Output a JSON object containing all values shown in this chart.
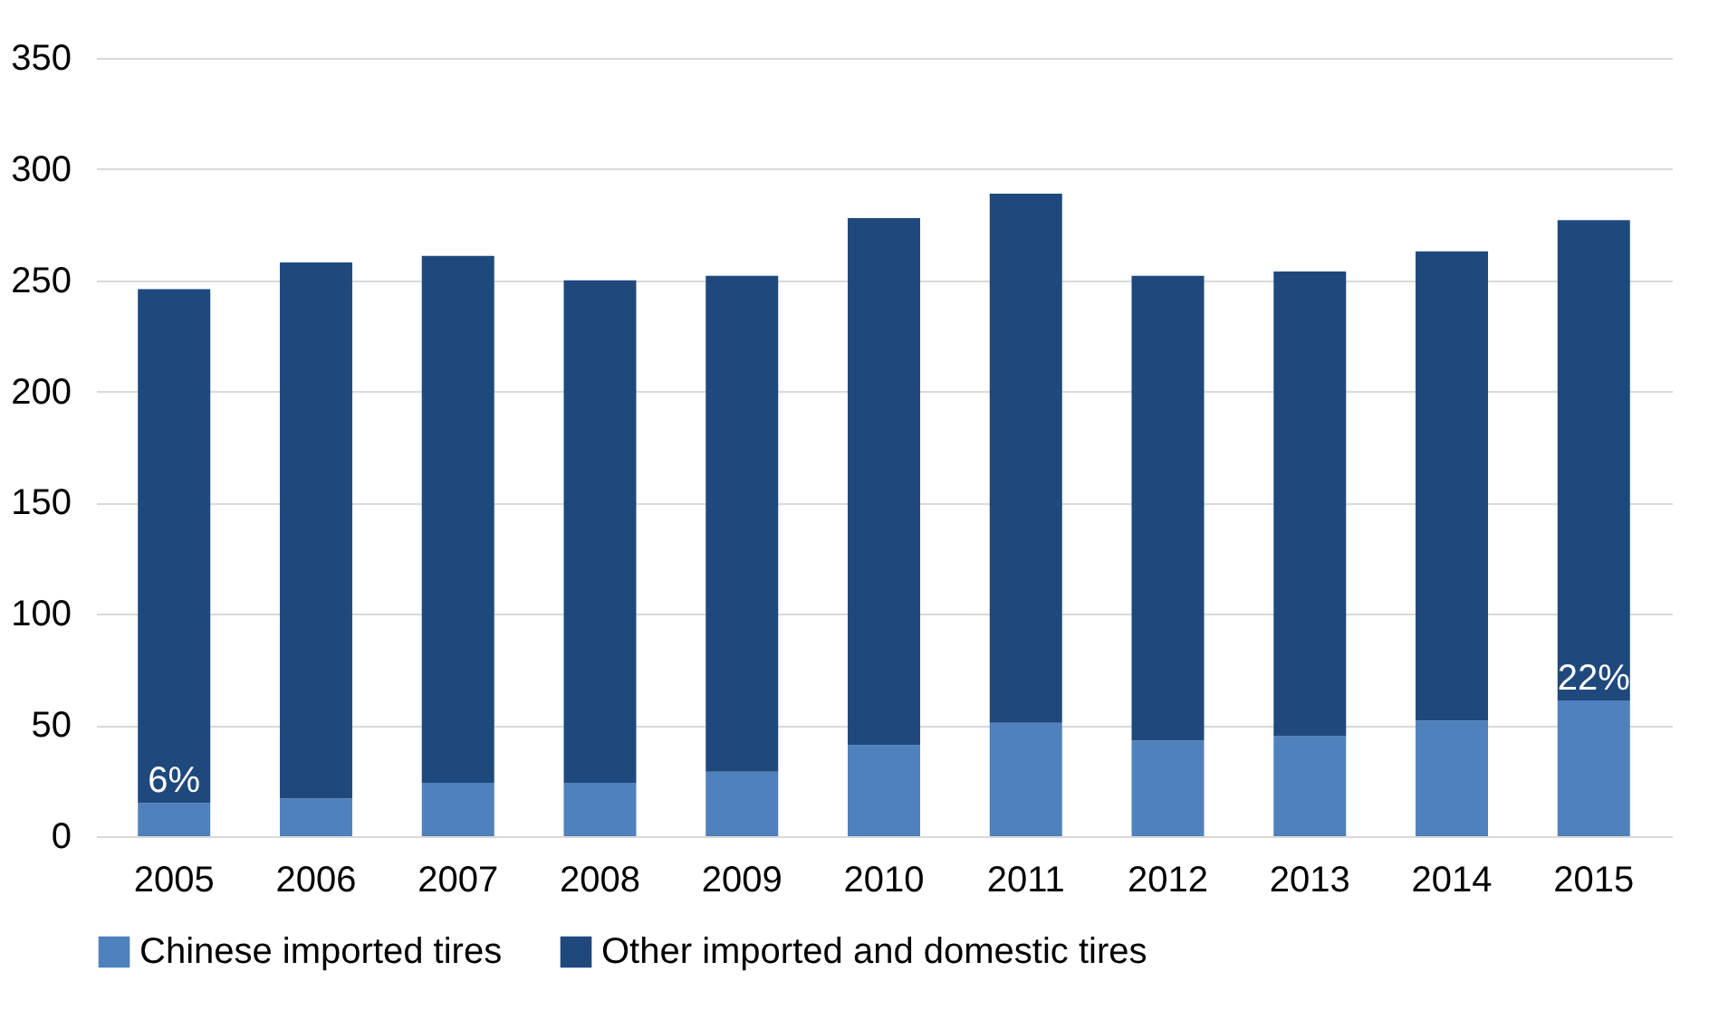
{
  "chart_data": {
    "type": "bar",
    "stacked": true,
    "categories": [
      "2005",
      "2006",
      "2007",
      "2008",
      "2009",
      "2010",
      "2011",
      "2012",
      "2013",
      "2014",
      "2015"
    ],
    "series": [
      {
        "name": "Chinese imported tires",
        "color": "#4f81bd",
        "values": [
          15,
          17,
          24,
          24,
          29,
          41,
          51,
          43,
          45,
          52,
          61
        ]
      },
      {
        "name": "Other imported and domestic tires",
        "color": "#1f497d",
        "values": [
          231,
          241,
          237,
          226,
          223,
          237,
          238,
          209,
          209,
          211,
          216
        ]
      }
    ],
    "ylim": [
      0,
      350
    ],
    "yticks": [
      0,
      50,
      100,
      150,
      200,
      250,
      300,
      350
    ],
    "grid": "y",
    "legend": "bottom",
    "annotations": [
      {
        "text": "6%",
        "x": "2005",
        "y": 15
      },
      {
        "text": "22%",
        "x": "2015",
        "y": 61
      }
    ]
  }
}
